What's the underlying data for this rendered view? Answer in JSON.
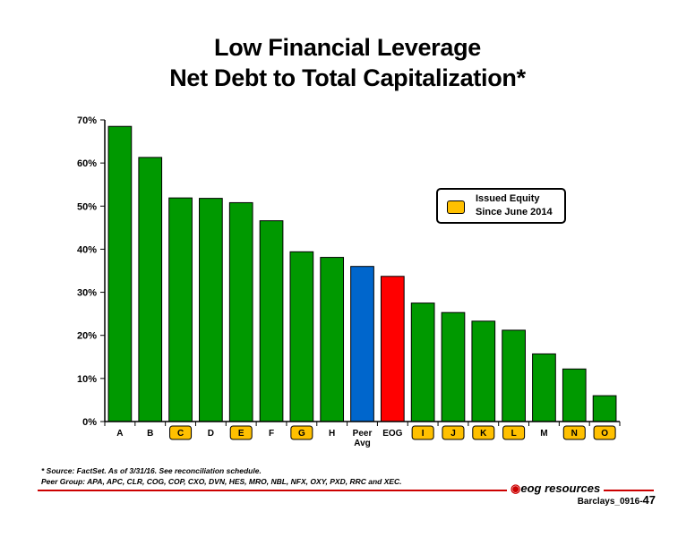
{
  "title_line1": "Low Financial Leverage",
  "title_line2": "Net Debt to Total Capitalization*",
  "legend_text_1": "Issued Equity",
  "legend_text_2": "Since June 2014",
  "footnote_1": "* Source: FactSet. As of 3/31/16.  See reconciliation schedule.",
  "footnote_2": "Peer Group: APA, APC, CLR, COG, COP, CXO, DVN, HES, MRO, NBL, NFX, OXY, PXD, RRC and XEC.",
  "logo_text": "eog resources",
  "slide_id": "Barclays_0916-",
  "slide_number": "47",
  "chart_data": {
    "type": "bar",
    "title": "Low Financial Leverage Net Debt to Total Capitalization*",
    "categories": [
      "A",
      "B",
      "C",
      "D",
      "E",
      "F",
      "G",
      "H",
      "Peer Avg",
      "EOG",
      "I",
      "J",
      "K",
      "L",
      "M",
      "N",
      "O"
    ],
    "values": [
      68.5,
      61.3,
      51.9,
      51.8,
      50.8,
      46.6,
      39.4,
      38.1,
      36.0,
      33.7,
      27.5,
      25.3,
      23.3,
      21.2,
      15.7,
      12.2,
      6.0
    ],
    "colors": [
      "#009900",
      "#009900",
      "#009900",
      "#009900",
      "#009900",
      "#009900",
      "#009900",
      "#009900",
      "#0066cc",
      "#ff0000",
      "#009900",
      "#009900",
      "#009900",
      "#009900",
      "#009900",
      "#009900",
      "#009900"
    ],
    "issued_equity": [
      false,
      false,
      true,
      false,
      true,
      false,
      true,
      false,
      false,
      false,
      true,
      true,
      true,
      true,
      false,
      true,
      true
    ],
    "highlight_color": "#ffc000",
    "ylim": [
      0,
      70
    ],
    "yticks": [
      "0%",
      "10%",
      "20%",
      "30%",
      "40%",
      "50%",
      "60%",
      "70%"
    ],
    "legend": "right",
    "grid": false
  }
}
